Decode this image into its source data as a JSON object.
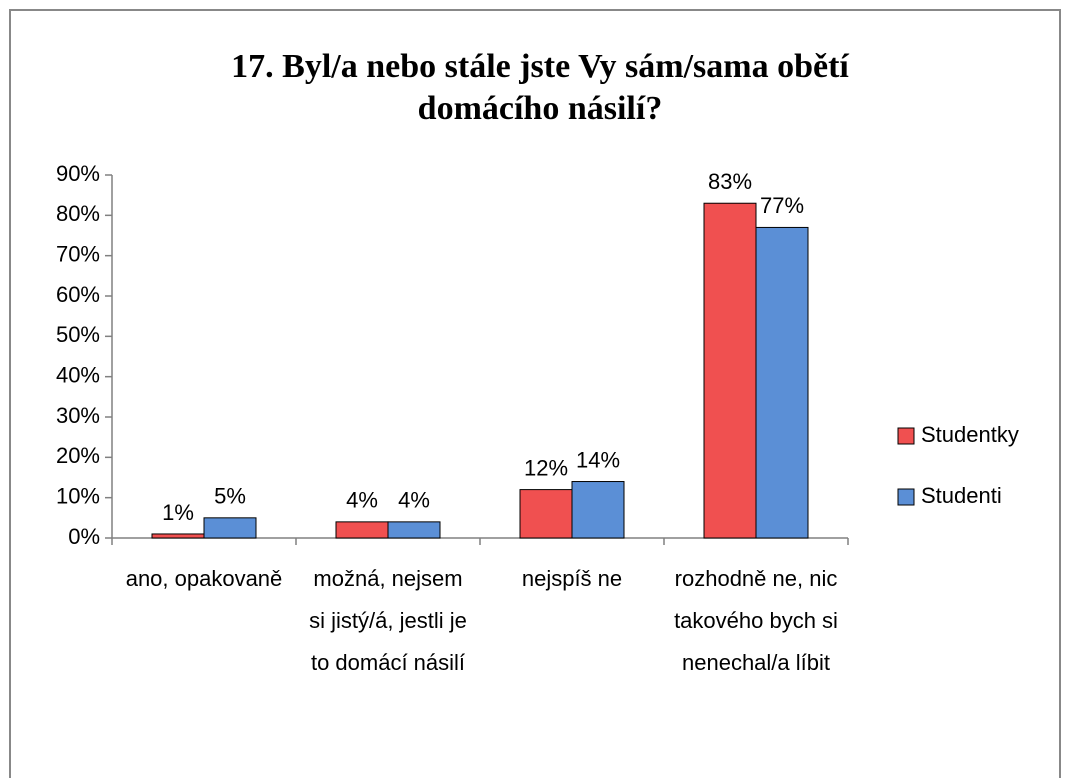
{
  "chart_data": {
    "type": "bar",
    "title": "17. Byl/a nebo stále jste Vy sám/sama obětí domácího násilí?",
    "categories": [
      "ano, opakovaně",
      "možná, nejsem si jistý/á, jestli je to domácí násilí",
      "nejspíš ne",
      "rozhodně ne, nic takového bych si nenechal/a líbit"
    ],
    "series": [
      {
        "name": "Studentky",
        "color": "#f05050",
        "values": [
          1,
          4,
          12,
          83
        ],
        "value_labels": [
          "1%",
          "4%",
          "12%",
          "83%"
        ]
      },
      {
        "name": "Studenti",
        "color": "#5b8fd6",
        "values": [
          5,
          4,
          14,
          77
        ],
        "value_labels": [
          "5%",
          "4%",
          "14%",
          "77%"
        ]
      }
    ],
    "ylim": [
      0,
      90
    ],
    "yticks": [
      {
        "value": 0,
        "label": "0%"
      },
      {
        "value": 10,
        "label": "10%"
      },
      {
        "value": 20,
        "label": "20%"
      },
      {
        "value": 30,
        "label": "30%"
      },
      {
        "value": 40,
        "label": "40%"
      },
      {
        "value": 50,
        "label": "50%"
      },
      {
        "value": 60,
        "label": "60%"
      },
      {
        "value": 70,
        "label": "70%"
      },
      {
        "value": 80,
        "label": "80%"
      },
      {
        "value": 90,
        "label": "90%"
      }
    ],
    "legend": "right",
    "grid": false
  }
}
